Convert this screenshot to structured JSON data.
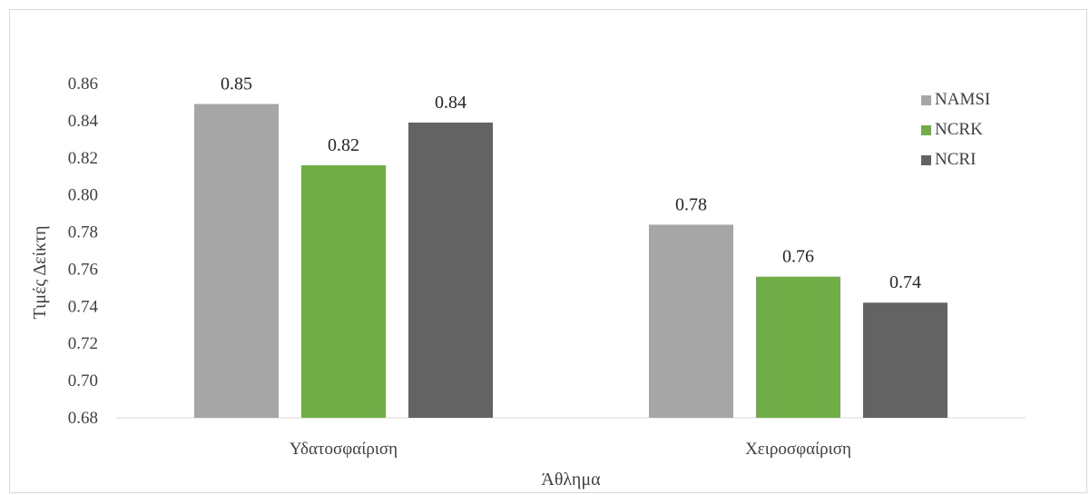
{
  "chart_data": {
    "type": "bar",
    "categories": [
      "Υδατοσφαίριση",
      "Χειροσφαίριση"
    ],
    "series": [
      {
        "name": "NAMSI",
        "values": [
          0.849,
          0.784
        ],
        "labels": [
          "0.85",
          "0.78"
        ],
        "color": "#a6a6a6"
      },
      {
        "name": "NCRK",
        "values": [
          0.816,
          0.756
        ],
        "labels": [
          "0.82",
          "0.76"
        ],
        "color": "#70ad47"
      },
      {
        "name": "NCRI",
        "values": [
          0.839,
          0.742
        ],
        "labels": [
          "0.84",
          "0.74"
        ],
        "color": "#636363"
      }
    ],
    "xlabel": "Άθλημα",
    "ylabel": "Τιμές Δείκτη",
    "ylim": [
      0.68,
      0.86
    ],
    "yticks": [
      "0.68",
      "0.70",
      "0.72",
      "0.74",
      "0.76",
      "0.78",
      "0.80",
      "0.82",
      "0.84",
      "0.86"
    ],
    "grid": false,
    "legend_position": "top-right"
  }
}
